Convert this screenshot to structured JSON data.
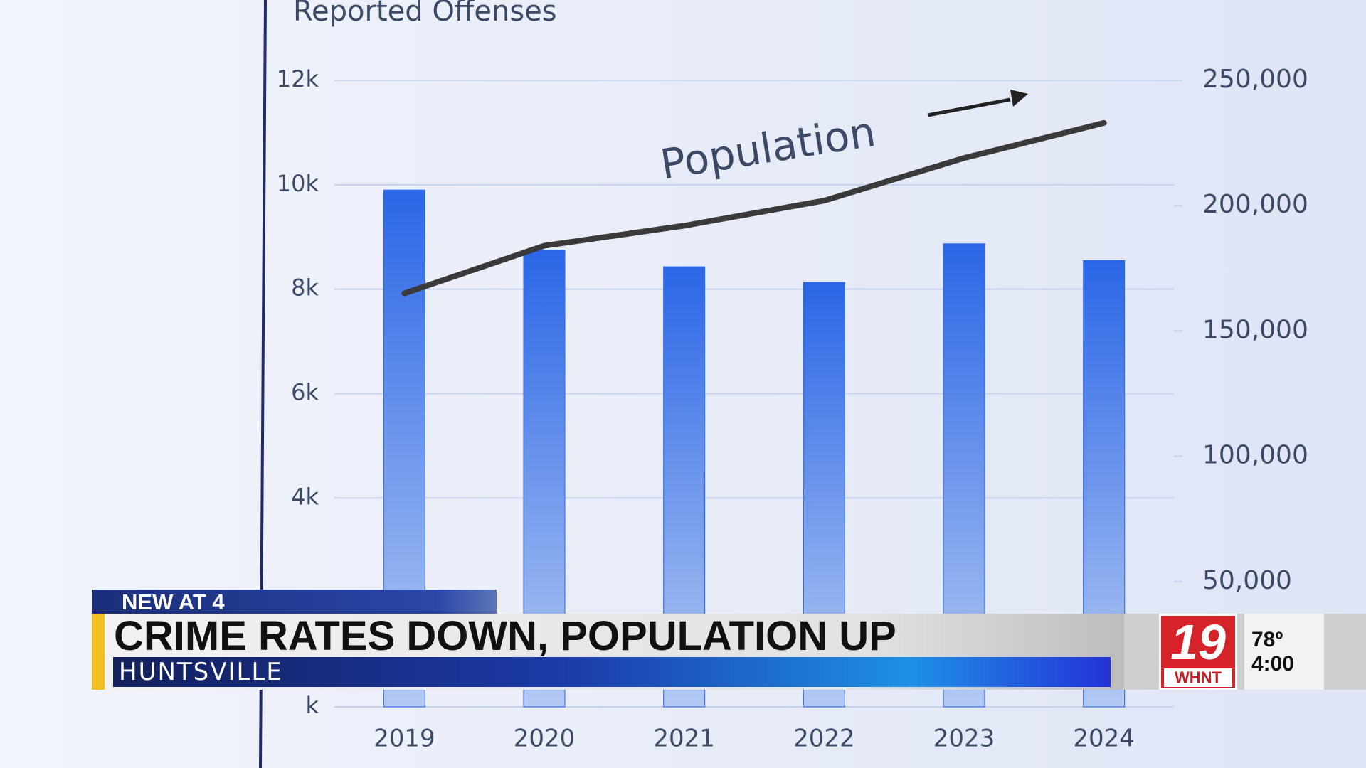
{
  "chart_data": {
    "type": "bar",
    "y_label": "Reported Offenses",
    "categories": [
      "2019",
      "2020",
      "2021",
      "2022",
      "2023",
      "2024"
    ],
    "series": [
      {
        "color": "#2a66e6",
        "values": [
          9900,
          8750,
          8430,
          8130,
          8870,
          8550
        ]
      },
      {
        "name": "Population",
        "type": "line",
        "axis": "y2",
        "color": "#3a3a3a",
        "values": [
          165000,
          184000,
          192000,
          202000,
          219000,
          233000
        ]
      }
    ],
    "ylim": [
      0,
      12000
    ],
    "yticks": [
      {
        "value": 0,
        "label": "k"
      },
      {
        "value": 4000,
        "label": "4k"
      },
      {
        "value": 6000,
        "label": "6k"
      },
      {
        "value": 8000,
        "label": "8k"
      },
      {
        "value": 10000,
        "label": "10k"
      },
      {
        "value": 12000,
        "label": "12k"
      }
    ],
    "y2lim": [
      0,
      250000
    ],
    "y2ticks": [
      {
        "value": 50000,
        "label": "50,000"
      },
      {
        "value": 100000,
        "label": "100,000"
      },
      {
        "value": 150000,
        "label": "150,000"
      },
      {
        "value": 200000,
        "label": "200,000"
      },
      {
        "value": 250000,
        "label": "250,000"
      }
    ],
    "grid": true
  },
  "overlay": {
    "tag": "NEW AT 4",
    "headline": "CRIME RATES DOWN, POPULATION UP",
    "location": "HUNTSVILLE",
    "station": {
      "channel": "19",
      "call": "WHNT"
    },
    "weather": {
      "temperature": "78º",
      "time": "4:00"
    }
  }
}
